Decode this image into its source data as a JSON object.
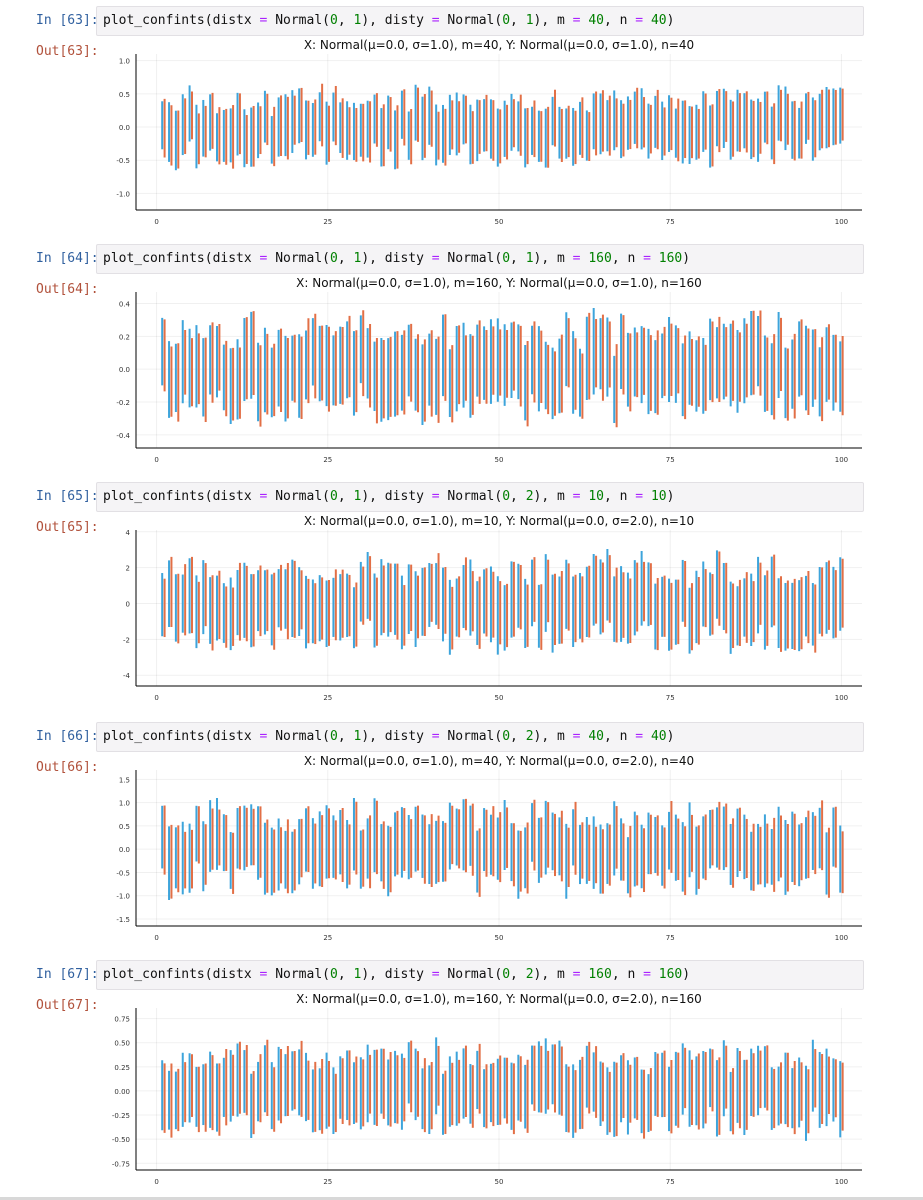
{
  "cells": [
    {
      "in_prompt": "In [63]:",
      "out_prompt": "Out[63]:",
      "code": {
        "fn": "plot_confints",
        "distx": "Normal",
        "dx_a": "0",
        "dx_b": "1",
        "disty": "Normal",
        "dy_a": "0",
        "dy_b": "1",
        "m": "40",
        "n": "40"
      },
      "chart_data": {
        "type": "errorbar",
        "title": "X: Normal(μ=0.0, σ=1.0), m=40,   Y: Normal(μ=0.0, σ=1.0), n=40",
        "x_ticks": [
          "0",
          "25",
          "50",
          "75",
          "100"
        ],
        "y_ticks": [
          "-1.0",
          "-0.5",
          "0.0",
          "0.5",
          "1.0"
        ],
        "y_tick_values": [
          -1.0,
          -0.5,
          0.0,
          0.5,
          1.0
        ],
        "ylim": [
          -1.25,
          1.1
        ],
        "xlim": [
          -3,
          103
        ],
        "series": [
          {
            "name": "X",
            "color": "#e26f46"
          },
          {
            "name": "Y",
            "color": "#3da4db"
          }
        ],
        "n_intervals": 100,
        "half_width": 0.42,
        "seed": 63
      }
    },
    {
      "in_prompt": "In [64]:",
      "out_prompt": "Out[64]:",
      "code": {
        "fn": "plot_confints",
        "distx": "Normal",
        "dx_a": "0",
        "dx_b": "1",
        "disty": "Normal",
        "dy_a": "0",
        "dy_b": "1",
        "m": "160",
        "n": "160"
      },
      "chart_data": {
        "type": "errorbar",
        "title": "X: Normal(μ=0.0, σ=1.0), m=160,   Y: Normal(μ=0.0, σ=1.0), n=160",
        "x_ticks": [
          "0",
          "25",
          "50",
          "75",
          "100"
        ],
        "y_ticks": [
          "-0.4",
          "-0.2",
          "0.0",
          "0.2",
          "0.4"
        ],
        "y_tick_values": [
          -0.4,
          -0.2,
          0.0,
          0.2,
          0.4
        ],
        "ylim": [
          -0.48,
          0.47
        ],
        "xlim": [
          -3,
          103
        ],
        "series": [
          {
            "name": "X",
            "color": "#e26f46"
          },
          {
            "name": "Y",
            "color": "#3da4db"
          }
        ],
        "n_intervals": 100,
        "half_width": 0.23,
        "seed": 64
      }
    },
    {
      "in_prompt": "In [65]:",
      "out_prompt": "Out[65]:",
      "code": {
        "fn": "plot_confints",
        "distx": "Normal",
        "dx_a": "0",
        "dx_b": "1",
        "disty": "Normal",
        "dy_a": "0",
        "dy_b": "2",
        "m": "10",
        "n": "10"
      },
      "chart_data": {
        "type": "errorbar",
        "title": "X: Normal(μ=0.0, σ=1.0), m=10,   Y: Normal(μ=0.0, σ=2.0), n=10",
        "x_ticks": [
          "0",
          "25",
          "50",
          "75",
          "100"
        ],
        "y_ticks": [
          "-4",
          "-2",
          "0",
          "2",
          "4"
        ],
        "y_tick_values": [
          -4,
          -2,
          0,
          2,
          4
        ],
        "ylim": [
          -4.6,
          4.1
        ],
        "xlim": [
          -3,
          103
        ],
        "series": [
          {
            "name": "X",
            "color": "#e26f46"
          },
          {
            "name": "Y",
            "color": "#3da4db"
          }
        ],
        "n_intervals": 100,
        "half_width": 1.9,
        "seed": 65
      }
    },
    {
      "in_prompt": "In [66]:",
      "out_prompt": "Out[66]:",
      "code": {
        "fn": "plot_confints",
        "distx": "Normal",
        "dx_a": "0",
        "dx_b": "1",
        "disty": "Normal",
        "dy_a": "0",
        "dy_b": "2",
        "m": "40",
        "n": "40"
      },
      "chart_data": {
        "type": "errorbar",
        "title": "X: Normal(μ=0.0, σ=1.0), m=40,   Y: Normal(μ=0.0, σ=2.0), n=40",
        "x_ticks": [
          "0",
          "25",
          "50",
          "75",
          "100"
        ],
        "y_ticks": [
          "-1.5",
          "-1.0",
          "-0.5",
          "0.0",
          "0.5",
          "1.0",
          "1.5"
        ],
        "y_tick_values": [
          -1.5,
          -1.0,
          -0.5,
          0.0,
          0.5,
          1.0,
          1.5
        ],
        "ylim": [
          -1.65,
          1.7
        ],
        "xlim": [
          -3,
          103
        ],
        "series": [
          {
            "name": "X",
            "color": "#e26f46"
          },
          {
            "name": "Y",
            "color": "#3da4db"
          }
        ],
        "n_intervals": 100,
        "half_width": 0.7,
        "seed": 66
      }
    },
    {
      "in_prompt": "In [67]:",
      "out_prompt": "Out[67]:",
      "code": {
        "fn": "plot_confints",
        "distx": "Normal",
        "dx_a": "0",
        "dx_b": "1",
        "disty": "Normal",
        "dy_a": "0",
        "dy_b": "2",
        "m": "160",
        "n": "160"
      },
      "chart_data": {
        "type": "errorbar",
        "title": "X: Normal(μ=0.0, σ=1.0), m=160,   Y: Normal(μ=0.0, σ=2.0), n=160",
        "x_ticks": [
          "0",
          "25",
          "50",
          "75",
          "100"
        ],
        "y_ticks": [
          "-0.75",
          "-0.50",
          "-0.25",
          "0.00",
          "0.25",
          "0.50",
          "0.75"
        ],
        "y_tick_values": [
          -0.75,
          -0.5,
          -0.25,
          0.0,
          0.25,
          0.5,
          0.75
        ],
        "ylim": [
          -0.82,
          0.86
        ],
        "xlim": [
          -3,
          103
        ],
        "series": [
          {
            "name": "X",
            "color": "#e26f46"
          },
          {
            "name": "Y",
            "color": "#3da4db"
          }
        ],
        "n_intervals": 100,
        "half_width": 0.35,
        "seed": 67
      }
    }
  ]
}
